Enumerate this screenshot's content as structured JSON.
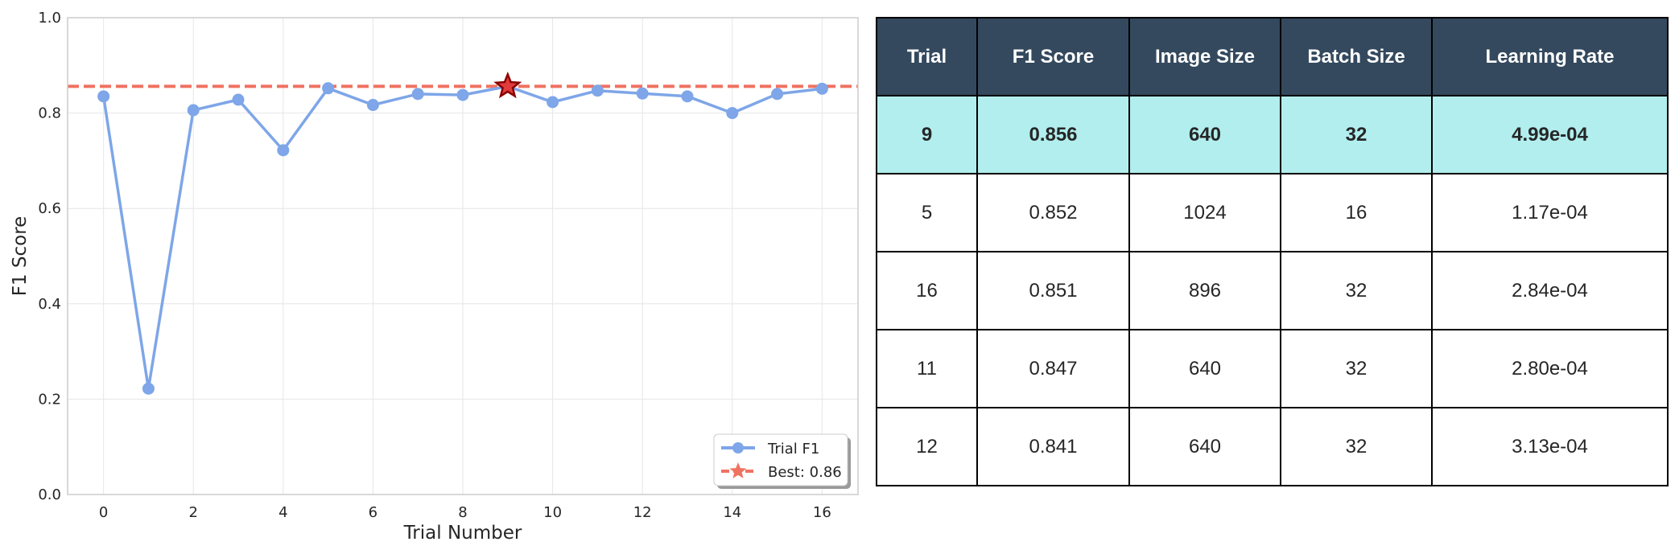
{
  "chart_data": {
    "type": "line",
    "xlabel": "Trial Number",
    "ylabel": "F1 Score",
    "xlim": [
      -0.8,
      16.8
    ],
    "ylim": [
      0.0,
      1.0
    ],
    "xticks": [
      0,
      2,
      4,
      6,
      8,
      10,
      12,
      14,
      16
    ],
    "yticks": [
      0.0,
      0.2,
      0.4,
      0.6,
      0.8,
      1.0
    ],
    "yticklabels": [
      "0.0",
      "0.2",
      "0.4",
      "0.6",
      "0.8",
      "1.0"
    ],
    "grid": true,
    "legend_position": "bottom-right",
    "series": [
      {
        "name": "Trial F1",
        "x": [
          0,
          1,
          2,
          3,
          4,
          5,
          6,
          7,
          8,
          9,
          10,
          11,
          12,
          13,
          14,
          15,
          16
        ],
        "y": [
          0.835,
          0.222,
          0.806,
          0.828,
          0.722,
          0.852,
          0.817,
          0.84,
          0.838,
          0.856,
          0.823,
          0.847,
          0.841,
          0.835,
          0.8,
          0.84,
          0.851
        ],
        "color": "#7ea6e8"
      }
    ],
    "best": {
      "label": "Best: 0.86",
      "x": 9,
      "y": 0.856,
      "color": "#f07261",
      "marker_color": "#e03c3c",
      "edge_color": "#8b0000"
    }
  },
  "table": {
    "headers": [
      "Trial",
      "F1 Score",
      "Image Size",
      "Batch Size",
      "Learning Rate"
    ],
    "rows": [
      [
        "9",
        "0.856",
        "640",
        "32",
        "4.99e-04"
      ],
      [
        "5",
        "0.852",
        "1024",
        "16",
        "1.17e-04"
      ],
      [
        "16",
        "0.851",
        "896",
        "32",
        "2.84e-04"
      ],
      [
        "11",
        "0.847",
        "640",
        "32",
        "2.80e-04"
      ],
      [
        "12",
        "0.841",
        "640",
        "32",
        "3.13e-04"
      ]
    ],
    "header_color": "#34495e",
    "highlight_color": "#b2eeee"
  }
}
